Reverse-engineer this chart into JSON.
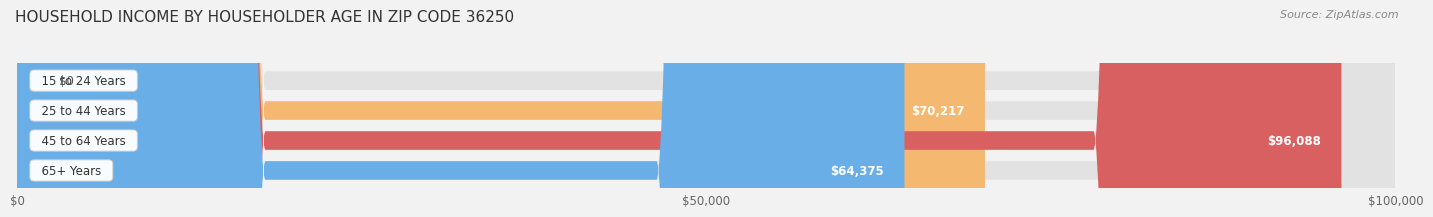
{
  "title": "HOUSEHOLD INCOME BY HOUSEHOLDER AGE IN ZIP CODE 36250",
  "source": "Source: ZipAtlas.com",
  "categories": [
    "15 to 24 Years",
    "25 to 44 Years",
    "45 to 64 Years",
    "65+ Years"
  ],
  "values": [
    0,
    70217,
    96088,
    64375
  ],
  "bar_colors": [
    "#f08098",
    "#f5b870",
    "#d96060",
    "#6aaee8"
  ],
  "value_labels": [
    "$0",
    "$70,217",
    "$96,088",
    "$64,375"
  ],
  "xlim_max": 100000,
  "xtick_labels": [
    "$0",
    "$50,000",
    "$100,000"
  ],
  "background_color": "#f2f2f2",
  "bar_background": "#e2e2e2",
  "title_fontsize": 11,
  "source_fontsize": 8
}
